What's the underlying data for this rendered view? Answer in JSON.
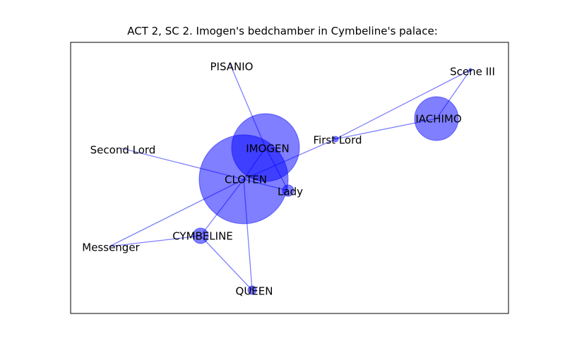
{
  "title": "ACT 2, SC 2. Imogen's bedchamber in Cymbeline's palace:",
  "colors": {
    "node": "#0000ff",
    "edge": "#0000ff",
    "frame": "#000000",
    "text": "#000000"
  },
  "nodes": [
    {
      "id": "PISANIO",
      "label": "PISANIO"
    },
    {
      "id": "SCENE_III",
      "label": "Scene III"
    },
    {
      "id": "IACHIMO",
      "label": "IACHIMO"
    },
    {
      "id": "FIRST_LORD",
      "label": "First Lord"
    },
    {
      "id": "IMOGEN",
      "label": "IMOGEN"
    },
    {
      "id": "SECOND_LORD",
      "label": "Second Lord"
    },
    {
      "id": "CLOTEN",
      "label": "CLOTEN"
    },
    {
      "id": "LADY",
      "label": "Lady"
    },
    {
      "id": "CYMBELINE",
      "label": "CYMBELINE"
    },
    {
      "id": "MESSENGER",
      "label": "Messenger"
    },
    {
      "id": "QUEEN",
      "label": "QUEEN"
    }
  ],
  "edges": [
    [
      "PISANIO",
      "IMOGEN"
    ],
    [
      "SCENE_III",
      "IACHIMO"
    ],
    [
      "SCENE_III",
      "FIRST_LORD"
    ],
    [
      "IACHIMO",
      "FIRST_LORD"
    ],
    [
      "FIRST_LORD",
      "CLOTEN"
    ],
    [
      "IMOGEN",
      "CLOTEN"
    ],
    [
      "IMOGEN",
      "LADY"
    ],
    [
      "SECOND_LORD",
      "CLOTEN"
    ],
    [
      "CLOTEN",
      "LADY"
    ],
    [
      "CLOTEN",
      "CYMBELINE"
    ],
    [
      "CLOTEN",
      "MESSENGER"
    ],
    [
      "CLOTEN",
      "QUEEN"
    ],
    [
      "CYMBELINE",
      "MESSENGER"
    ],
    [
      "CYMBELINE",
      "QUEEN"
    ]
  ]
}
